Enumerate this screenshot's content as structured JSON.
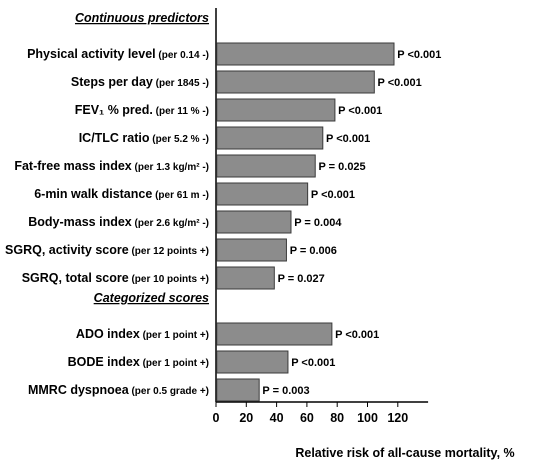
{
  "chart_data": {
    "type": "bar",
    "orientation": "horizontal",
    "xlabel": "Relative risk of all-cause mortality, %",
    "xlim": [
      0,
      140
    ],
    "xticks": [
      "0",
      "20",
      "40",
      "60",
      "80",
      "100",
      "120"
    ],
    "bar_color": "#8c8c8c",
    "groups": [
      {
        "heading": "Continuous predictors",
        "items": [
          {
            "label": "Physical activity level",
            "detail": "(per 0.14 -)",
            "value": 117,
            "p": "P <0.001"
          },
          {
            "label": "Steps per day",
            "detail": "(per 1845 -)",
            "value": 104,
            "p": "P <0.001"
          },
          {
            "label": "FEV₁ % pred.",
            "detail": "(per 11 % -)",
            "value": 78,
            "p": "P <0.001"
          },
          {
            "label": "IC/TLC ratio",
            "detail": "(per 5.2 % -)",
            "value": 70,
            "p": "P <0.001"
          },
          {
            "label": "Fat-free mass index",
            "detail": "(per 1.3 kg/m² -)",
            "value": 65,
            "p": "P = 0.025"
          },
          {
            "label": "6-min walk distance",
            "detail": "(per 61 m -)",
            "value": 60,
            "p": "P <0.001"
          },
          {
            "label": "Body-mass index",
            "detail": "(per 2.6 kg/m² -)",
            "value": 49,
            "p": "P = 0.004"
          },
          {
            "label": "SGRQ, activity score",
            "detail": "(per 12 points +)",
            "value": 46,
            "p": "P = 0.006"
          },
          {
            "label": "SGRQ, total score",
            "detail": "(per 10 points +)",
            "value": 38,
            "p": "P = 0.027"
          }
        ]
      },
      {
        "heading": "Categorized scores",
        "items": [
          {
            "label": "ADO index",
            "detail": "(per 1 point +)",
            "value": 76,
            "p": "P <0.001"
          },
          {
            "label": "BODE index",
            "detail": "(per 1 point +)",
            "value": 47,
            "p": "P <0.001"
          },
          {
            "label": "MMRC dyspnoea",
            "detail": "(per 0.5 grade +)",
            "value": 28,
            "p": "P = 0.003"
          }
        ]
      }
    ]
  }
}
